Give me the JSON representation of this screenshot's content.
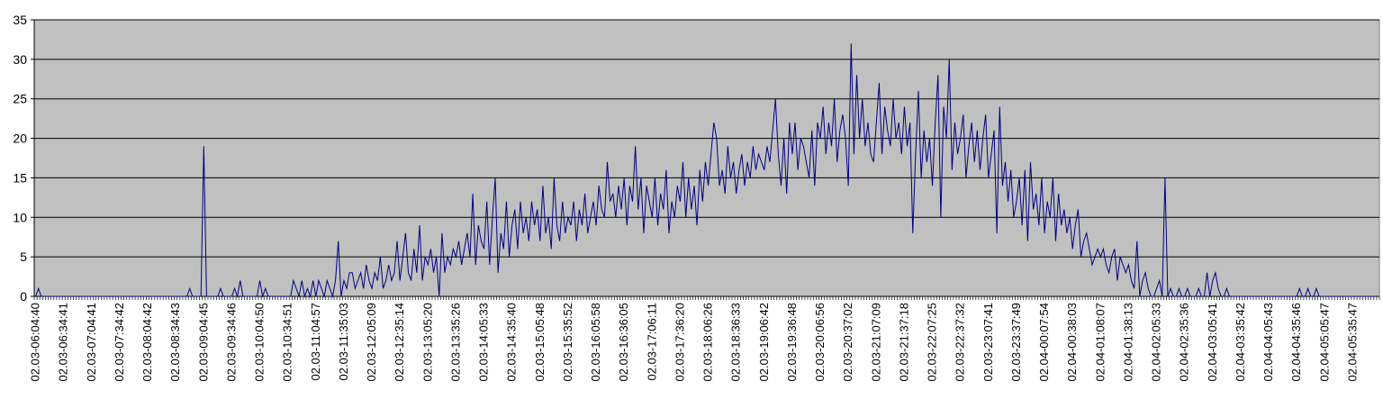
{
  "chart_data": {
    "type": "line",
    "color": "#000080",
    "background": "#c0c0c0",
    "grid": true,
    "ylim": [
      0,
      35
    ],
    "yticks": [
      0,
      5,
      10,
      15,
      20,
      25,
      30,
      35
    ],
    "categories": [
      "02.03-06:04:40",
      null,
      null,
      null,
      null,
      null,
      null,
      null,
      null,
      null,
      "02.03-06:34:41",
      null,
      null,
      null,
      null,
      null,
      null,
      null,
      null,
      null,
      "02.03-07:04:41",
      null,
      null,
      null,
      null,
      null,
      null,
      null,
      null,
      null,
      "02.03-07:34:42",
      null,
      null,
      null,
      null,
      null,
      null,
      null,
      null,
      null,
      "02.03-08:04:42",
      null,
      null,
      null,
      null,
      null,
      null,
      null,
      null,
      null,
      "02.03-08:34:43",
      null,
      null,
      null,
      null,
      null,
      null,
      null,
      null,
      null,
      "02.03-09:04:45",
      null,
      null,
      null,
      null,
      null,
      null,
      null,
      null,
      null,
      "02.03-09:34:46",
      null,
      null,
      null,
      null,
      null,
      null,
      null,
      null,
      null,
      "02.03-10:04:50",
      null,
      null,
      null,
      null,
      null,
      null,
      null,
      null,
      null,
      "02.03-10:34:51",
      null,
      null,
      null,
      null,
      null,
      null,
      null,
      null,
      null,
      "02.03-11:04:57",
      null,
      null,
      null,
      null,
      null,
      null,
      null,
      null,
      null,
      "02.03-11:35:03",
      null,
      null,
      null,
      null,
      null,
      null,
      null,
      null,
      null,
      "02.03-12:05:09",
      null,
      null,
      null,
      null,
      null,
      null,
      null,
      null,
      null,
      "02.03-12:35:14",
      null,
      null,
      null,
      null,
      null,
      null,
      null,
      null,
      null,
      "02.03-13:05:20",
      null,
      null,
      null,
      null,
      null,
      null,
      null,
      null,
      null,
      "02.03-13:35:26",
      null,
      null,
      null,
      null,
      null,
      null,
      null,
      null,
      null,
      "02.03-14:05:33",
      null,
      null,
      null,
      null,
      null,
      null,
      null,
      null,
      null,
      "02.03-14:35:40",
      null,
      null,
      null,
      null,
      null,
      null,
      null,
      null,
      null,
      "02.03-15:05:48",
      null,
      null,
      null,
      null,
      null,
      null,
      null,
      null,
      null,
      "02.03-15:35:52",
      null,
      null,
      null,
      null,
      null,
      null,
      null,
      null,
      null,
      "02.03-16:05:58",
      null,
      null,
      null,
      null,
      null,
      null,
      null,
      null,
      null,
      "02.03-16:36:05",
      null,
      null,
      null,
      null,
      null,
      null,
      null,
      null,
      null,
      "02.03-17:06:11",
      null,
      null,
      null,
      null,
      null,
      null,
      null,
      null,
      null,
      "02.03-17:36:20",
      null,
      null,
      null,
      null,
      null,
      null,
      null,
      null,
      null,
      "02.03-18:06:26",
      null,
      null,
      null,
      null,
      null,
      null,
      null,
      null,
      null,
      "02.03-18:36:33",
      null,
      null,
      null,
      null,
      null,
      null,
      null,
      null,
      null,
      "02.03-19:06:42",
      null,
      null,
      null,
      null,
      null,
      null,
      null,
      null,
      null,
      "02.03-19:36:48",
      null,
      null,
      null,
      null,
      null,
      null,
      null,
      null,
      null,
      "02.03-20:06:56",
      null,
      null,
      null,
      null,
      null,
      null,
      null,
      null,
      null,
      "02.03-20:37:02",
      null,
      null,
      null,
      null,
      null,
      null,
      null,
      null,
      null,
      "02.03-21:07:09",
      null,
      null,
      null,
      null,
      null,
      null,
      null,
      null,
      null,
      "02.03-21:37:18",
      null,
      null,
      null,
      null,
      null,
      null,
      null,
      null,
      null,
      "02.03-22:07:25",
      null,
      null,
      null,
      null,
      null,
      null,
      null,
      null,
      null,
      "02.03-22:37:32",
      null,
      null,
      null,
      null,
      null,
      null,
      null,
      null,
      null,
      "02.03-23:07:41",
      null,
      null,
      null,
      null,
      null,
      null,
      null,
      null,
      null,
      "02.03-23:37:49",
      null,
      null,
      null,
      null,
      null,
      null,
      null,
      null,
      null,
      "02.04-00:07:54",
      null,
      null,
      null,
      null,
      null,
      null,
      null,
      null,
      null,
      "02.04-00:38:03",
      null,
      null,
      null,
      null,
      null,
      null,
      null,
      null,
      null,
      "02.04-01:08:07",
      null,
      null,
      null,
      null,
      null,
      null,
      null,
      null,
      null,
      "02.04-01:38:13",
      null,
      null,
      null,
      null,
      null,
      null,
      null,
      null,
      null,
      "02.04-02:05:33",
      null,
      null,
      null,
      null,
      null,
      null,
      null,
      null,
      null,
      "02.04-02:35:36",
      null,
      null,
      null,
      null,
      null,
      null,
      null,
      null,
      null,
      "02.04-03:05:41",
      null,
      null,
      null,
      null,
      null,
      null,
      null,
      null,
      null,
      "02.04-03:35:42",
      null,
      null,
      null,
      null,
      null,
      null,
      null,
      null,
      null,
      "02.04-04:05:43",
      null,
      null,
      null,
      null,
      null,
      null,
      null,
      null,
      null,
      "02.04-04:35:46",
      null,
      null,
      null,
      null,
      null,
      null,
      null,
      null,
      null,
      "02.04-05:05:47",
      null,
      null,
      null,
      null,
      null,
      null,
      null,
      null,
      null,
      "02.04-05:35:47",
      null,
      null,
      null,
      null,
      null,
      null,
      null,
      null,
      null
    ],
    "values": [
      0,
      1,
      0,
      0,
      0,
      0,
      0,
      0,
      0,
      0,
      0,
      0,
      0,
      0,
      0,
      0,
      0,
      0,
      0,
      0,
      0,
      0,
      0,
      0,
      0,
      0,
      0,
      0,
      0,
      0,
      0,
      0,
      0,
      0,
      0,
      0,
      0,
      0,
      0,
      0,
      0,
      0,
      0,
      0,
      0,
      0,
      0,
      0,
      0,
      0,
      0,
      0,
      0,
      0,
      0,
      1,
      0,
      0,
      0,
      0,
      19,
      0,
      0,
      0,
      0,
      0,
      1,
      0,
      0,
      0,
      0,
      1,
      0,
      2,
      0,
      0,
      0,
      0,
      0,
      0,
      2,
      0,
      1,
      0,
      0,
      0,
      0,
      0,
      0,
      0,
      0,
      0,
      2,
      1,
      0,
      2,
      0,
      1,
      0,
      2,
      0,
      2,
      1,
      0,
      2,
      1,
      0,
      2,
      7,
      0,
      2,
      1,
      3,
      3,
      1,
      2,
      3,
      1,
      4,
      2,
      1,
      3,
      2,
      5,
      1,
      2,
      4,
      2,
      3,
      7,
      2,
      5,
      8,
      3,
      2,
      6,
      3,
      9,
      2,
      5,
      4,
      6,
      3,
      5,
      0,
      8,
      3,
      5,
      4,
      6,
      5,
      7,
      4,
      6,
      8,
      5,
      13,
      4,
      9,
      7,
      6,
      12,
      4,
      10,
      15,
      3,
      8,
      6,
      12,
      5,
      9,
      11,
      6,
      12,
      8,
      10,
      7,
      12,
      9,
      11,
      7,
      14,
      8,
      10,
      6,
      15,
      9,
      7,
      12,
      8,
      10,
      9,
      12,
      7,
      11,
      9,
      13,
      8,
      10,
      12,
      9,
      14,
      11,
      10,
      17,
      12,
      13,
      10,
      14,
      11,
      15,
      9,
      14,
      12,
      19,
      11,
      15,
      8,
      14,
      12,
      10,
      15,
      9,
      13,
      11,
      16,
      8,
      12,
      10,
      14,
      12,
      17,
      10,
      15,
      11,
      14,
      9,
      16,
      12,
      17,
      14,
      18,
      22,
      20,
      14,
      16,
      13,
      19,
      15,
      17,
      13,
      16,
      18,
      14,
      17,
      15,
      19,
      16,
      18,
      17,
      16,
      19,
      17,
      21,
      25,
      18,
      14,
      20,
      13,
      22,
      18,
      22,
      16,
      20,
      19,
      17,
      15,
      21,
      14,
      22,
      20,
      24,
      18,
      22,
      19,
      25,
      17,
      21,
      23,
      20,
      14,
      32,
      18,
      28,
      20,
      25,
      19,
      22,
      18,
      17,
      22,
      27,
      18,
      24,
      21,
      19,
      25,
      20,
      22,
      18,
      24,
      19,
      22,
      8,
      18,
      26,
      15,
      21,
      17,
      20,
      14,
      22,
      28,
      10,
      24,
      20,
      30,
      16,
      22,
      18,
      20,
      23,
      15,
      19,
      22,
      17,
      21,
      16,
      20,
      23,
      15,
      18,
      21,
      8,
      24,
      14,
      17,
      12,
      16,
      10,
      12,
      15,
      9,
      16,
      7,
      17,
      11,
      13,
      9,
      15,
      8,
      12,
      10,
      15,
      7,
      13,
      9,
      11,
      8,
      10,
      6,
      9,
      11,
      5,
      7,
      8,
      6,
      4,
      5,
      6,
      5,
      6,
      4,
      3,
      5,
      6,
      2,
      5,
      4,
      3,
      4,
      2,
      1,
      7,
      0,
      2,
      3,
      1,
      0,
      0,
      1,
      2,
      0,
      15,
      0,
      1,
      0,
      0,
      1,
      0,
      0,
      1,
      0,
      0,
      0,
      1,
      0,
      0,
      3,
      0,
      2,
      3,
      1,
      0,
      0,
      1,
      0,
      0,
      0,
      0,
      0,
      0,
      0,
      0,
      0,
      0,
      0,
      0,
      0,
      0,
      0,
      0,
      0,
      0,
      0,
      0,
      0,
      0,
      0,
      0,
      0,
      1,
      0,
      0,
      1,
      0,
      0,
      1,
      0,
      0,
      0,
      0,
      0,
      0,
      0,
      0,
      0,
      0,
      0,
      0,
      0,
      0,
      0,
      0,
      0,
      0,
      0,
      0,
      0,
      0
    ]
  }
}
